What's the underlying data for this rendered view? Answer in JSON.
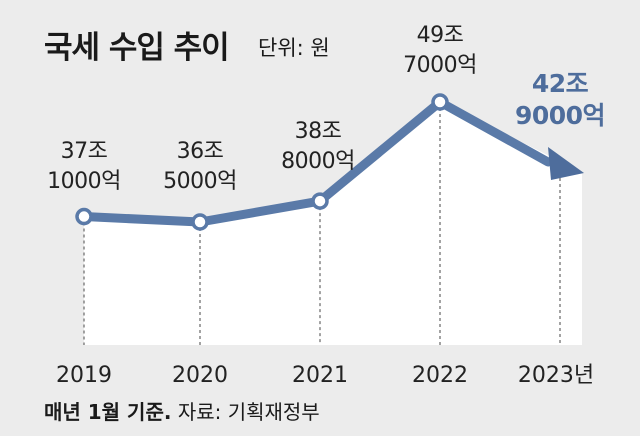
{
  "header": {
    "title": "국세 수입 추이",
    "unit": "단위: 원"
  },
  "footnote": {
    "basis": "매년 1월 기준.",
    "source": "자료: 기획재정부"
  },
  "colors": {
    "line": "#5a7aa8",
    "highlight": "#4e6d9c",
    "background": "#ececec",
    "area": "#ffffff"
  },
  "chart_data": {
    "type": "line",
    "title": "국세 수입 추이",
    "unit": "원",
    "x": [
      "2019",
      "2020",
      "2021",
      "2022",
      "2023"
    ],
    "x_tick_labels": [
      "2019",
      "2020",
      "2021",
      "2022",
      "2023년"
    ],
    "values_trillion": [
      37.1,
      36.5,
      38.8,
      49.7,
      42.9
    ],
    "data_labels": [
      [
        "37조",
        "1000억"
      ],
      [
        "36조",
        "5000억"
      ],
      [
        "38조",
        "8000억"
      ],
      [
        "49조",
        "7000억"
      ],
      [
        "42조",
        "9000억"
      ]
    ],
    "highlight_index": 4,
    "grid": false,
    "legend": "none"
  }
}
